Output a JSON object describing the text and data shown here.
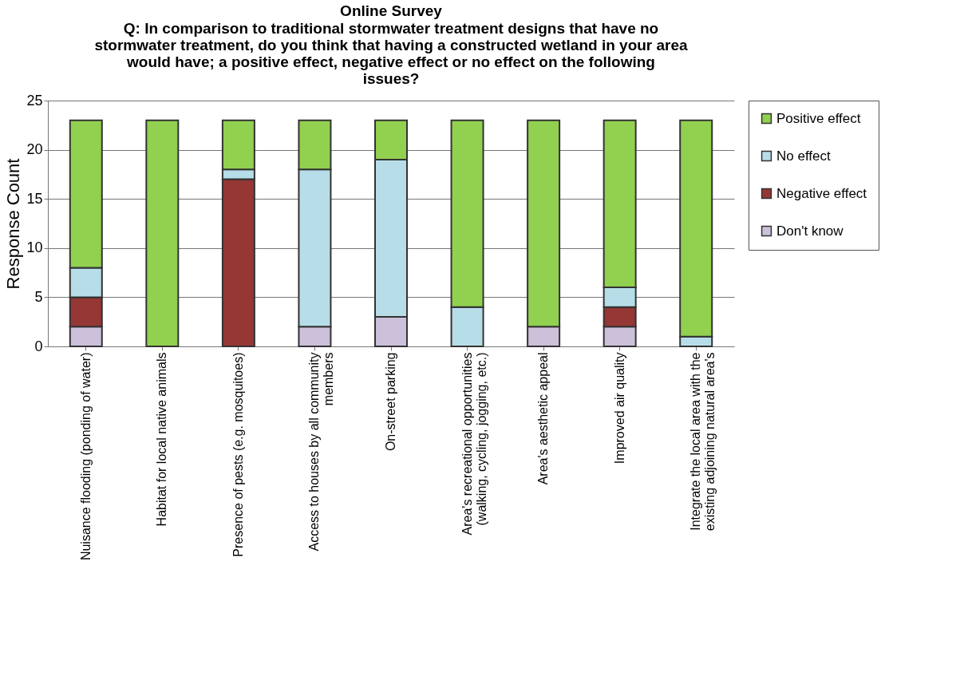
{
  "chart_data": {
    "type": "bar",
    "stacked": true,
    "title": "Online Survey",
    "subtitle": "Q: In comparison to traditional stormwater treatment designs that have no stormwater treatment, do you think that having a constructed wetland in your area would have; a positive effect, negative effect or no effect on the following issues?",
    "ylabel": "Response Count",
    "categories": [
      "Nuisance flooding (ponding of water)",
      "Habitat for local native animals",
      "Presence of pests (e.g. mosquitoes)",
      "Access to houses by all community members",
      "On-street parking",
      "Area's recreational opportunities (walking, cycling, jogging, etc.)",
      "Area's aesthetic appeal",
      "Improved air quality",
      "Integrate the local area with the existing adjoining natural area's"
    ],
    "series": [
      {
        "name": "Don't know",
        "color": "#ccc0da",
        "values": [
          2,
          0,
          0,
          2,
          3,
          0,
          2,
          2,
          0
        ]
      },
      {
        "name": "Negative effect",
        "color": "#953735",
        "values": [
          3,
          0,
          17,
          0,
          0,
          0,
          0,
          2,
          0
        ]
      },
      {
        "name": "No effect",
        "color": "#b7dee8",
        "values": [
          3,
          0,
          1,
          16,
          16,
          4,
          0,
          2,
          1
        ]
      },
      {
        "name": "Positive effect",
        "color": "#92d050",
        "values": [
          15,
          23,
          5,
          5,
          4,
          19,
          21,
          17,
          22
        ]
      }
    ],
    "ylim": [
      0,
      25
    ],
    "yticks": [
      0,
      5,
      10,
      15,
      20,
      25
    ],
    "grid": "y",
    "legend": "right"
  }
}
